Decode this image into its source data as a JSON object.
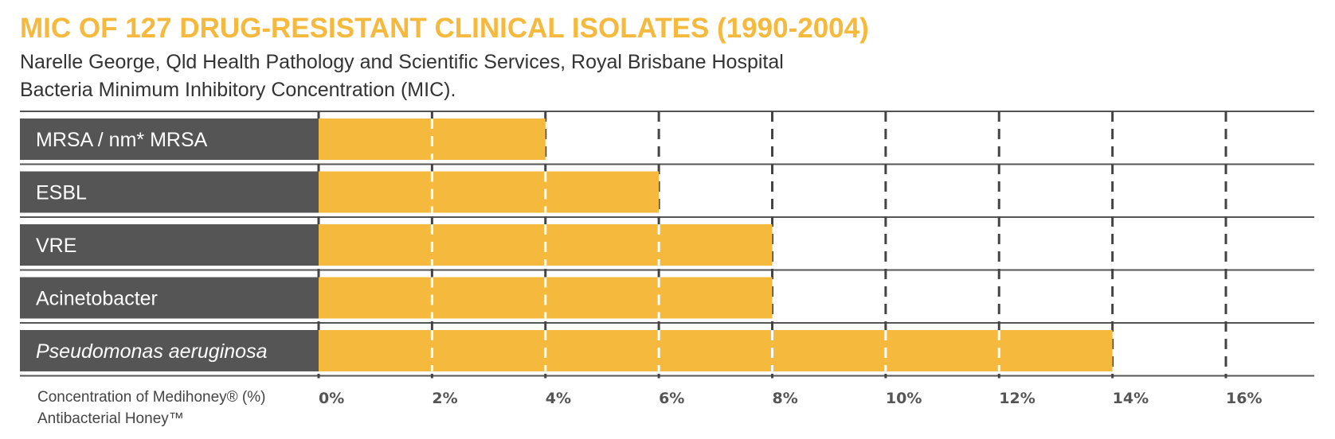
{
  "header": {
    "title": "MIC OF 127 DRUG-RESISTANT CLINICAL ISOLATES (1990-2004)",
    "subtitle_line1": "Narelle George, Qld Health Pathology and Scientific Services, Royal Brisbane Hospital",
    "subtitle_line2": "Bacteria Minimum Inhibitory Concentration (MIC)."
  },
  "colors": {
    "accent": "#F5B93D",
    "label_bg": "#555555",
    "gridline": "#444444",
    "bar_grid": "#ffffff"
  },
  "chart_data": {
    "type": "bar",
    "orientation": "horizontal",
    "categories": [
      "MRSA / nm* MRSA",
      "ESBL",
      "VRE",
      "Acinetobacter",
      "Pseudomonas aeruginosa"
    ],
    "italic_categories": [
      "Pseudomonas aeruginosa"
    ],
    "values": [
      4,
      6,
      8,
      8,
      14
    ],
    "unit": "%",
    "xlim": [
      0,
      16
    ],
    "x_ticks": [
      0,
      2,
      4,
      6,
      8,
      10,
      12,
      14,
      16
    ],
    "x_tick_labels": [
      "0%",
      "2%",
      "4%",
      "6%",
      "8%",
      "10%",
      "12%",
      "14%",
      "16%"
    ],
    "xlabel_line1": "Concentration of Medihoney® (%)",
    "xlabel_line2": "Antibacterial Honey™",
    "grid": true,
    "grid_style": "dashed vertical"
  }
}
